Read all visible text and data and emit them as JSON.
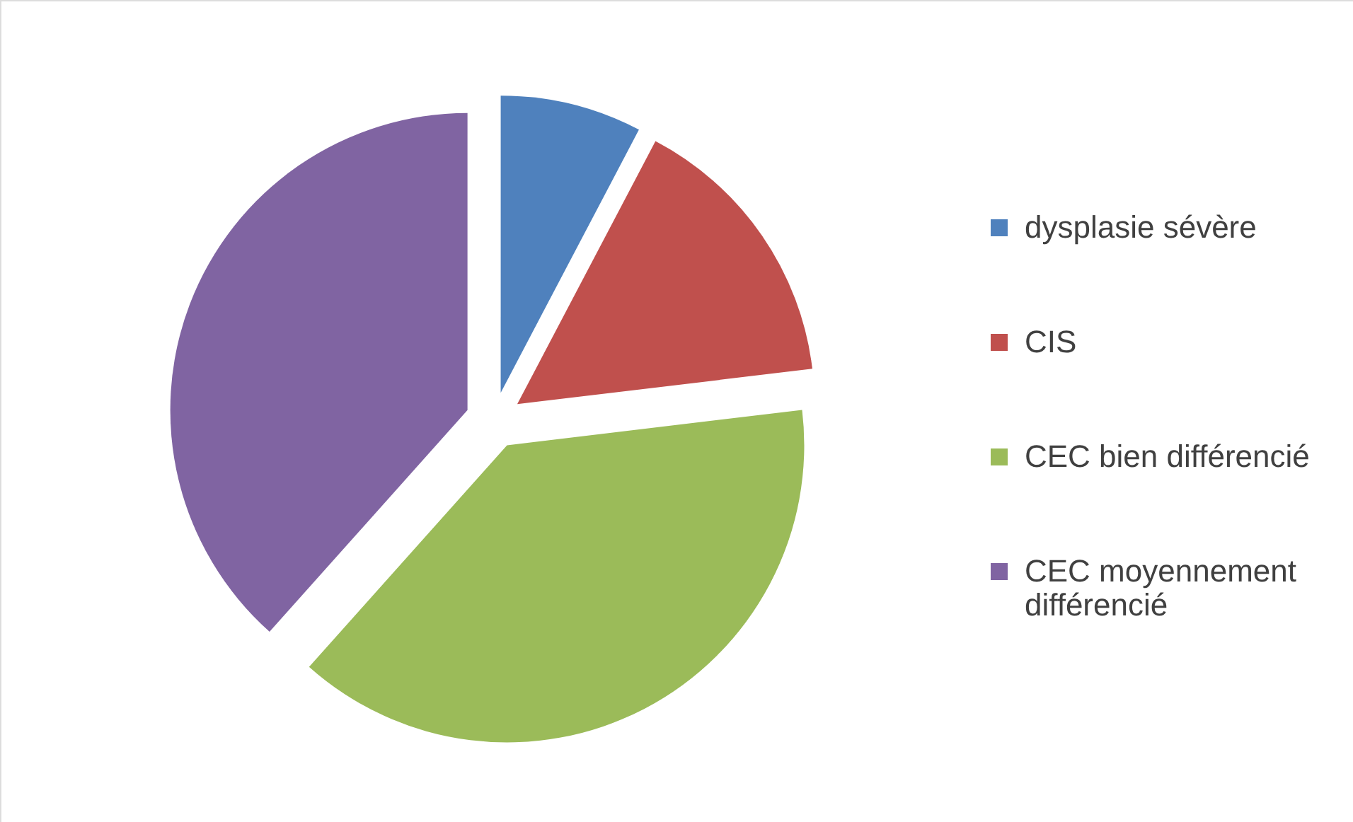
{
  "chart_data": {
    "type": "pie",
    "categories": [
      "dysplasie sévère",
      "CIS",
      "CEC bien différencié",
      "CEC moyennement différencié"
    ],
    "values": [
      7.7,
      15.4,
      38.5,
      38.4
    ],
    "colors": [
      "#4f81bd",
      "#c0504d",
      "#9bbb59",
      "#8064a2"
    ],
    "legend": "right"
  }
}
